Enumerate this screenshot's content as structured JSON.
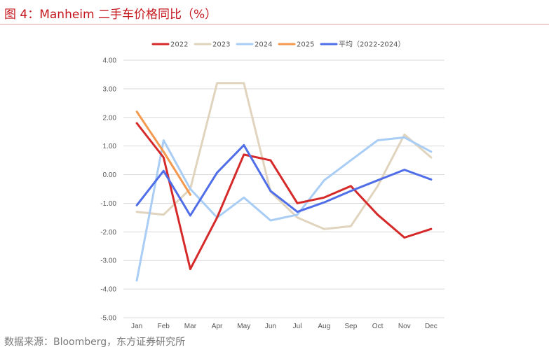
{
  "title": "图 4：Manheim 二手车价格同比（%）",
  "source": "数据来源：Bloomberg，东方证券研究所",
  "chart_data": {
    "type": "line",
    "categories": [
      "Jan",
      "Feb",
      "Mar",
      "Apr",
      "May",
      "Jun",
      "Jul",
      "Aug",
      "Sep",
      "Oct",
      "Nov",
      "Dec"
    ],
    "ylim": [
      -5,
      4
    ],
    "yticks": [
      4,
      3,
      2,
      1,
      0,
      -1,
      -2,
      -3,
      -4,
      -5
    ],
    "ytick_labels": [
      "4.00",
      "3.00",
      "2.00",
      "1.00",
      "0.00",
      "-1.00",
      "-2.00",
      "-3.00",
      "-4.00",
      "-5.00"
    ],
    "grid": true,
    "legend_position": "top",
    "series": [
      {
        "name": "2022",
        "color": "#d62a2a",
        "values": [
          1.8,
          0.6,
          -3.3,
          -1.5,
          0.7,
          0.5,
          -1.0,
          -0.8,
          -0.4,
          -1.4,
          -2.2,
          -1.9
        ]
      },
      {
        "name": "2023",
        "color": "#e0d4be",
        "values": [
          -1.3,
          -1.4,
          -0.5,
          3.2,
          3.2,
          -0.6,
          -1.5,
          -1.9,
          -1.8,
          -0.4,
          1.4,
          0.6
        ]
      },
      {
        "name": "2024",
        "color": "#a9cdf5",
        "values": [
          -3.7,
          1.2,
          -0.5,
          -1.5,
          -0.8,
          -1.6,
          -1.4,
          -0.2,
          0.5,
          1.2,
          1.3,
          0.8
        ]
      },
      {
        "name": "2025",
        "color": "#f5994e",
        "values": [
          2.2,
          0.8,
          -0.7,
          null,
          null,
          null,
          null,
          null,
          null,
          null,
          null,
          null
        ]
      },
      {
        "name": "平均（2022-2024）",
        "color": "#4f6ee8",
        "values": [
          -1.07,
          0.13,
          -1.43,
          0.07,
          1.03,
          -0.57,
          -1.3,
          -0.97,
          -0.57,
          -0.2,
          0.17,
          -0.17
        ]
      }
    ]
  }
}
